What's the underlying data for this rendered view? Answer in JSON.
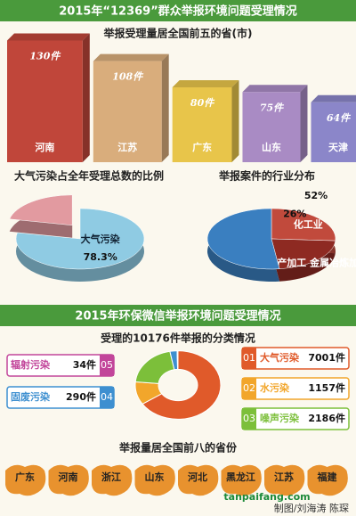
{
  "header": "2015年“12369”群众举报环境问题受理情况",
  "section2_header": "2015年环保微信举报环境问题受理情况",
  "provinces_title": "举报量居全国前八的省份",
  "provinces": [
    "广东",
    "河南",
    "浙江",
    "山东",
    "河北",
    "黑龙江",
    "江苏",
    "福建"
  ],
  "credit": "制图/刘海涛 陈琛",
  "watermark": "tanpaifang.com",
  "chart_data": [
    {
      "type": "bar",
      "title": "举报受理量居全国前五的省(市)",
      "categories": [
        "河南",
        "江苏",
        "广东",
        "山东",
        "天津"
      ],
      "values": [
        130,
        108,
        80,
        75,
        64
      ],
      "value_labels": [
        "130件",
        "108件",
        "80件",
        "75件",
        "64件"
      ],
      "colors": [
        "#c0463a",
        "#d9ad7c",
        "#e8c54a",
        "#a98bc4",
        "#8b86c9"
      ]
    },
    {
      "type": "pie",
      "title": "大气污染占全年受理总数的比例",
      "categories": [
        "大气污染",
        null
      ],
      "values": [
        78.3,
        21.7
      ],
      "value_labels": [
        "78.3%",
        null
      ],
      "colors": [
        "#8fcbe3",
        "#e29aa0"
      ]
    },
    {
      "type": "pie",
      "title": "举报案件的行业分布",
      "categories": [
        "化工业",
        "非金属矿产加工 金属冶炼加工业",
        null
      ],
      "values": [
        26,
        22,
        52
      ],
      "value_labels": [
        "26%",
        null,
        "52%"
      ],
      "colors": [
        "#c14a3c",
        "#8e2a22",
        "#3a7fc0"
      ]
    },
    {
      "type": "donut",
      "title": "受理的10176件举报的分类情况",
      "ids": [
        "01",
        "02",
        "03",
        "04",
        "05"
      ],
      "categories": [
        "大气污染",
        "水污染",
        "噪声污染",
        "固废污染",
        "辐射污染"
      ],
      "values": [
        7001,
        1157,
        2186,
        290,
        34
      ],
      "value_labels": [
        "7001件",
        "1157件",
        "2186件",
        "290件",
        "34件"
      ],
      "colors": [
        "#e05a2a",
        "#f2a62b",
        "#7cbf3a",
        "#3d8fd0",
        "#c2459a"
      ]
    }
  ]
}
